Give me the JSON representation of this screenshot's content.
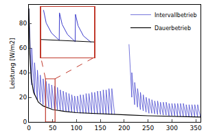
{
  "chart_data": [
    {
      "type": "line",
      "y_label": "Leistung [W/m2]",
      "xlim": [
        0,
        360
      ],
      "xticks": [
        0,
        50,
        100,
        150,
        200,
        250,
        300,
        350
      ],
      "ylim": [
        0,
        95
      ],
      "yticks": [
        0,
        20,
        40,
        60,
        80
      ],
      "grid": false,
      "legend": "upper right",
      "series": [
        {
          "name": "Intervallbetrieb",
          "color": "#3b3bcc",
          "x": [
            0,
            5.9,
            6,
            11.9,
            12,
            17.9,
            18,
            23.9,
            24,
            29.9,
            30,
            35.9,
            36,
            41.9,
            42,
            47.9,
            48,
            53.9,
            54,
            59.9,
            60,
            65.9,
            66,
            71.9,
            72,
            77.9,
            78,
            83.9,
            84,
            89.9,
            90,
            95.9,
            96,
            101.9,
            102,
            107.9,
            108,
            113.9,
            114,
            119.9,
            120,
            125.9,
            126,
            131.9,
            132,
            137.9,
            138,
            143.9,
            144,
            149.9,
            150,
            155.9,
            156,
            161.9,
            162,
            167.9,
            168,
            173.9,
            174,
            179.9,
            190,
            210,
            215.9,
            216,
            221.9,
            222,
            227.9,
            228,
            233.9,
            234,
            239.9,
            240,
            245.9,
            246,
            251.9,
            252,
            257.9,
            258,
            263.9,
            264,
            269.9,
            270,
            275.9,
            276,
            281.9,
            282,
            287.9,
            288,
            293.9,
            294,
            299.9,
            300,
            305.9,
            306,
            311.9,
            312,
            317.9,
            318,
            323.9,
            324,
            329.9,
            330,
            335.9,
            336,
            341.9,
            342,
            347.9,
            348,
            353.9,
            354,
            359.9
          ],
          "values": [
            92,
            30,
            60,
            22,
            48,
            18,
            42,
            16,
            38,
            14,
            35,
            13,
            33,
            12,
            31,
            11,
            30,
            10.5,
            29,
            10,
            28,
            9.5,
            26,
            9,
            25,
            8.5,
            24,
            8,
            23,
            8,
            22,
            7.5,
            21,
            7.5,
            21,
            7,
            22,
            7,
            22,
            7,
            23,
            7,
            23,
            6.5,
            24,
            6.5,
            24,
            6.5,
            25,
            6.5,
            25,
            6.5,
            26,
            6,
            26,
            6,
            27,
            6,
            27,
            6,
            null,
            63,
            20,
            40,
            14,
            32,
            12,
            27,
            10,
            24,
            9,
            22,
            8,
            20,
            7,
            19,
            7,
            18,
            6.5,
            17,
            6,
            17,
            6,
            16,
            5.5,
            16,
            5.5,
            16,
            5,
            15,
            5,
            15,
            5,
            15,
            4.5,
            15,
            4.5,
            15,
            4.5,
            15,
            4.5,
            14,
            4,
            14,
            4,
            14,
            4,
            14,
            4,
            14,
            4
          ]
        },
        {
          "name": "Dauerbetrieb",
          "color": "#000000",
          "x": [
            0,
            2,
            5,
            10,
            20,
            30,
            50,
            75,
            100,
            150,
            180,
            200,
            210,
            250,
            300,
            360
          ],
          "values": [
            92,
            55,
            35,
            24,
            16,
            13,
            10,
            8.5,
            7.5,
            6.5,
            6,
            5.8,
            5.6,
            5,
            4.5,
            4
          ]
        }
      ]
    },
    {
      "type": "line",
      "tick_labels": false,
      "xlim": [
        35,
        55
      ],
      "ylim": [
        0,
        35
      ],
      "color": "#c0392b",
      "series": [
        {
          "name": "Intervallbetrieb",
          "color": "#3b3bcc",
          "x": [
            36,
            37,
            39,
            41.9,
            42,
            43,
            45,
            47.9,
            48,
            49,
            51,
            53.9
          ],
          "values": [
            33,
            24,
            17,
            12,
            31,
            23,
            16,
            11,
            30,
            22,
            15,
            10.5
          ]
        },
        {
          "name": "Dauerbetrieb",
          "color": "#000000",
          "x": [
            35,
            55
          ],
          "values": [
            12.5,
            10.8
          ]
        }
      ]
    }
  ]
}
